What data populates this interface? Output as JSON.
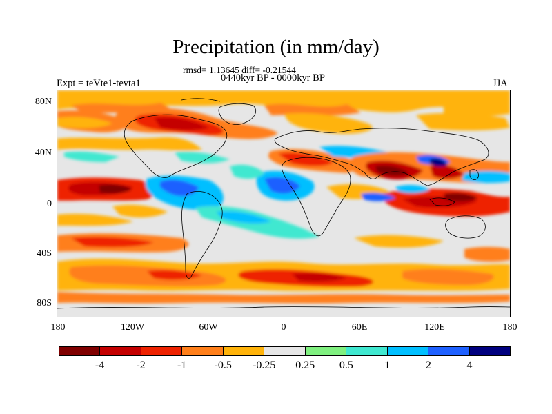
{
  "title": "Precipitation (in mm/day)",
  "stats": "rmsd= 1.13645 diff= -0.21544",
  "period": "0440kyr BP - 0000kyr BP",
  "experiment": "Expt = teVte1-tevta1",
  "season": "JJA",
  "lat_labels": [
    "80N",
    "40N",
    "0",
    "40S",
    "80S"
  ],
  "lon_labels": [
    "180",
    "120W",
    "60W",
    "0",
    "60E",
    "120E",
    "180"
  ],
  "colorbar": {
    "colors": [
      "#800000",
      "#c40000",
      "#ee2200",
      "#ff7f1a",
      "#ffb30a",
      "#e6e6e6",
      "#80f080",
      "#40e8d0",
      "#00bfff",
      "#1e60ff",
      "#00007f"
    ],
    "labels": [
      "-4",
      "-2",
      "-1",
      "-0.5",
      "-0.25",
      "0.25",
      "0.5",
      "1",
      "2",
      "4"
    ]
  },
  "icons": {
    "basemap": "world-coastline-icon"
  }
}
